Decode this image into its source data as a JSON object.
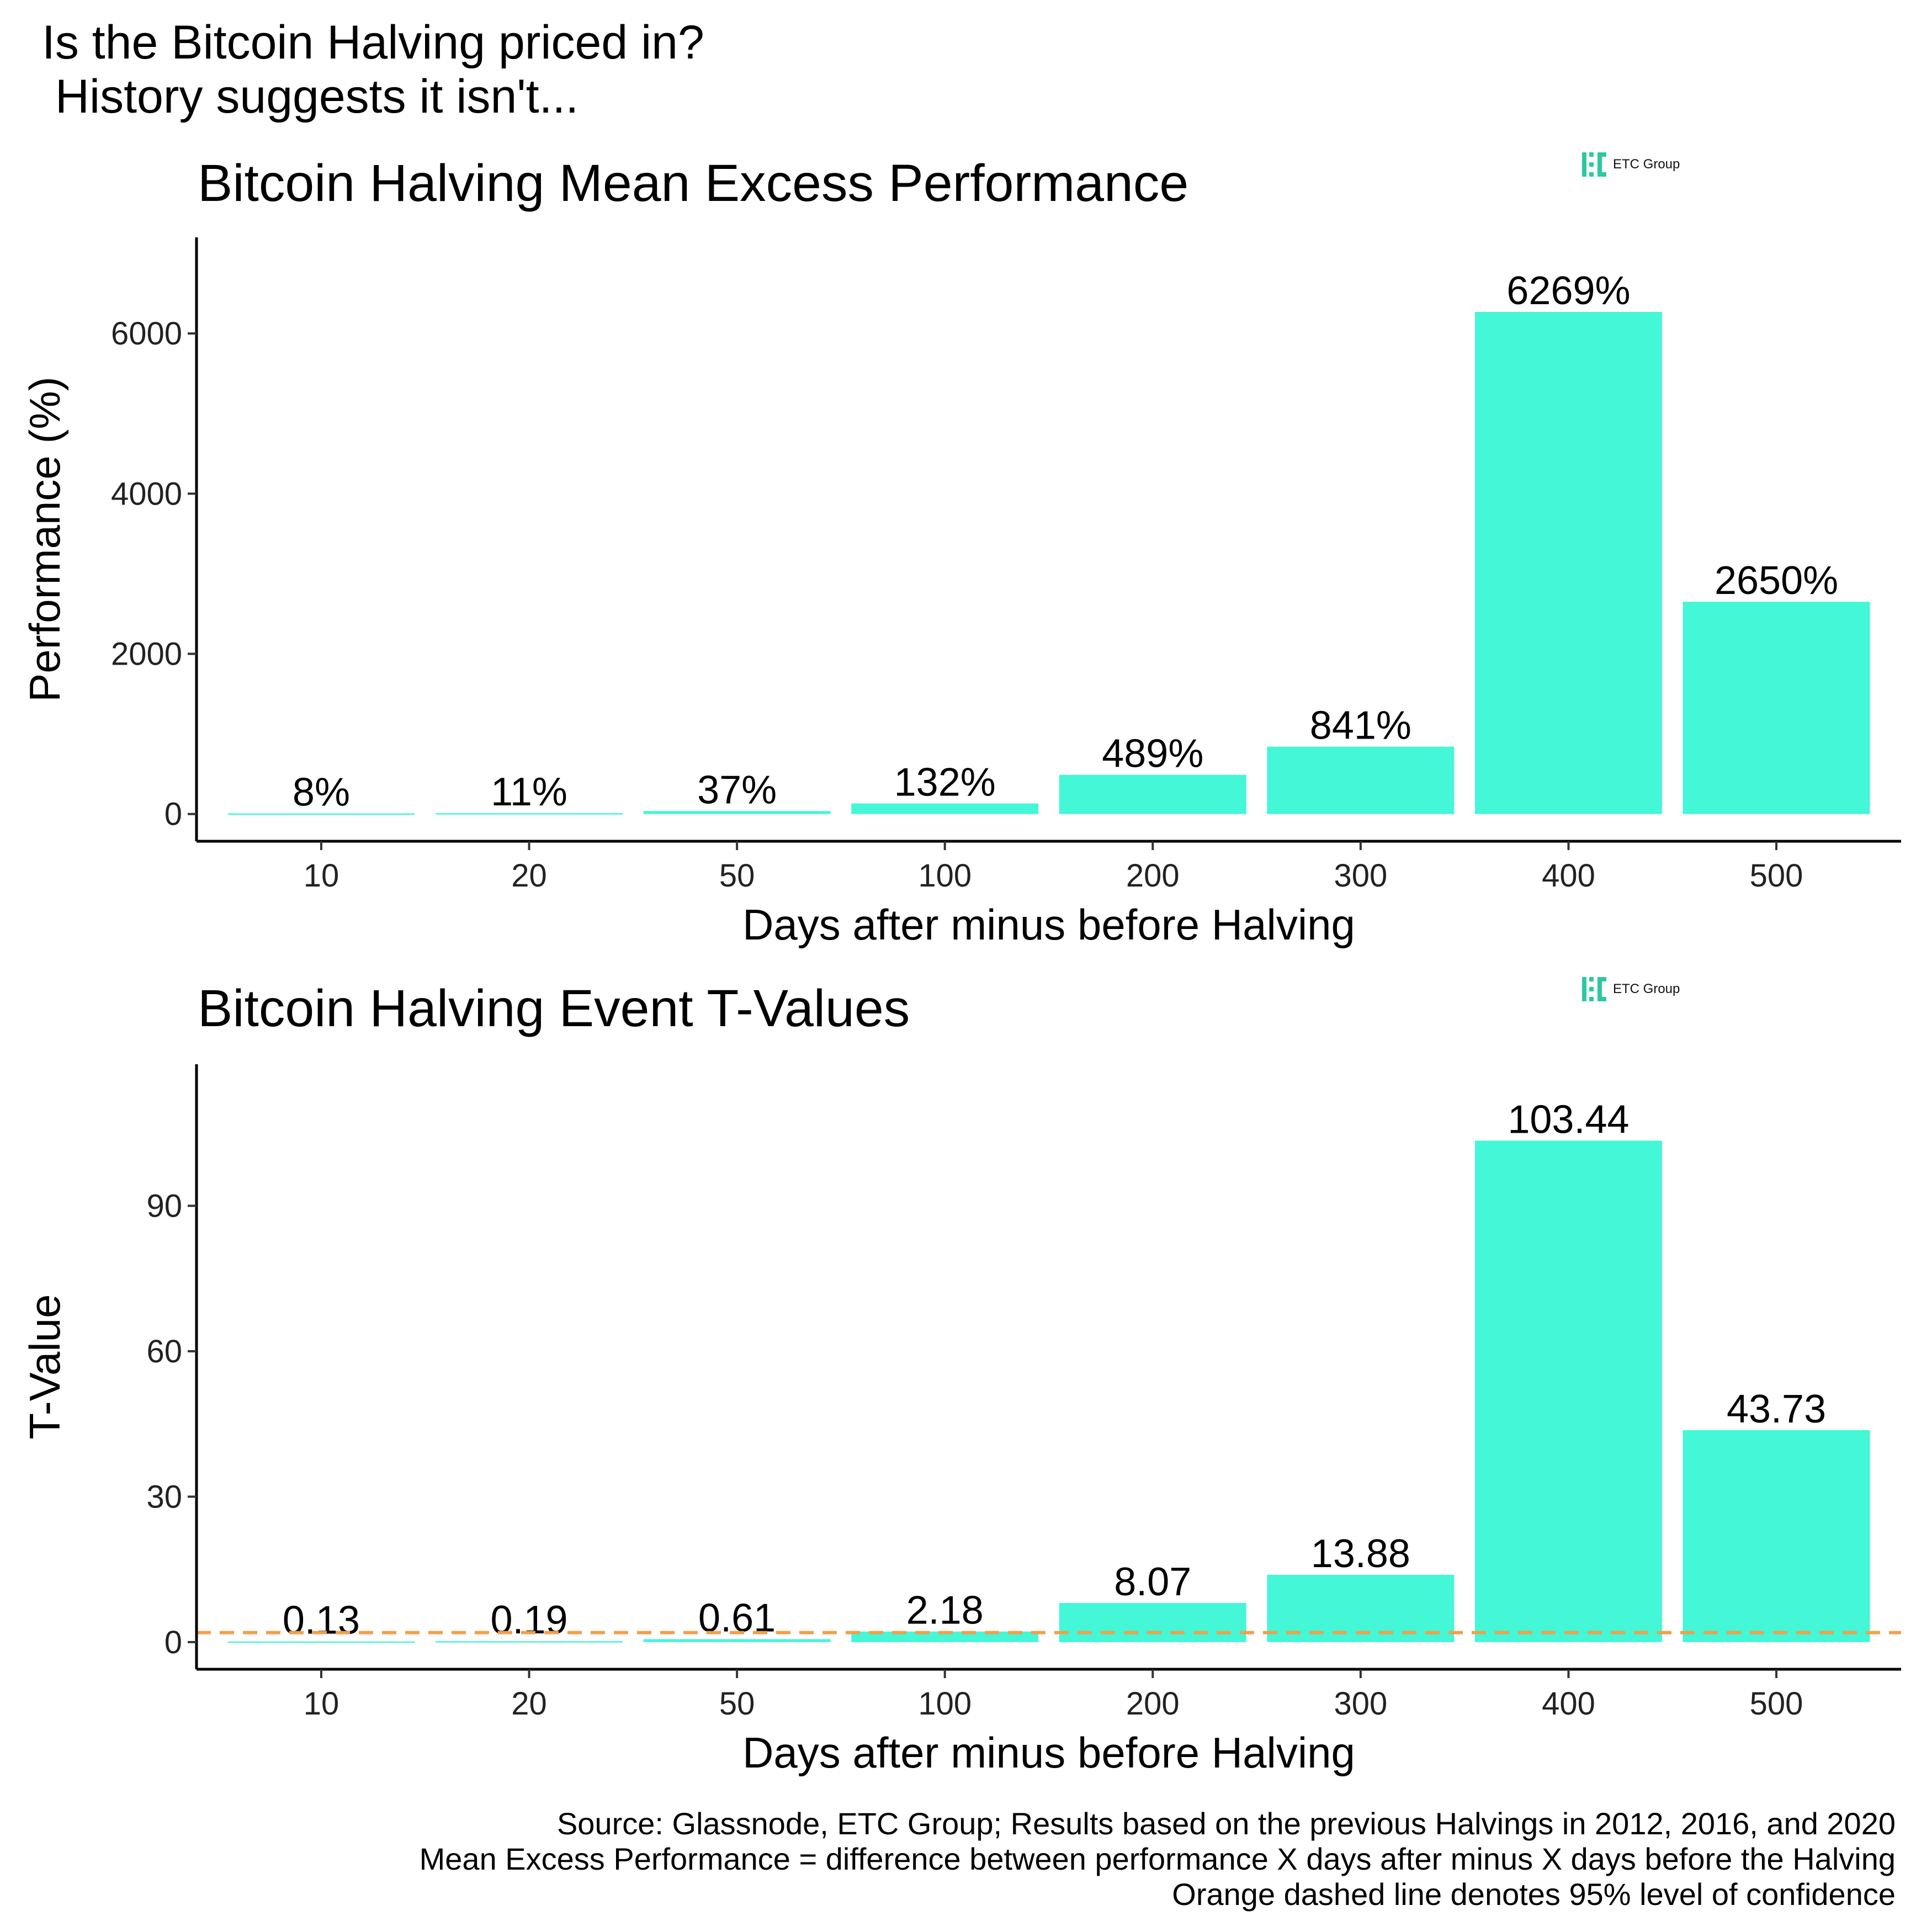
{
  "page": {
    "title_line1": "Is the Bitcoin Halving priced in?",
    "title_line2": " History suggests it isn't...",
    "logo_text": "ETC Group",
    "footer": [
      "Source: Glassnode, ETC Group; Results based on the previous Halvings in 2012, 2016, and 2020",
      "Mean Excess Performance = difference between performance X days after minus X days before the Halving",
      "Orange dashed line denotes 95% level of confidence"
    ]
  },
  "colors": {
    "bar": "#44F7D6",
    "threshold": "#F0A04B",
    "logo": "#2CC9A0",
    "axis": "#000000"
  },
  "chart_data": [
    {
      "type": "bar",
      "title": "Bitcoin Halving Mean Excess Performance",
      "xlabel": "Days after minus before Halving",
      "ylabel": "Performance (%)",
      "categories": [
        "10",
        "20",
        "50",
        "100",
        "200",
        "300",
        "400",
        "500"
      ],
      "values": [
        8,
        11,
        37,
        132,
        489,
        841,
        6269,
        2650
      ],
      "labels": [
        "8%",
        "11%",
        "37%",
        "132%",
        "489%",
        "841%",
        "6269%",
        "2650%"
      ],
      "yticks": [
        0,
        2000,
        4000,
        6000
      ],
      "ylim": [
        -340,
        7200
      ],
      "grid": false
    },
    {
      "type": "bar",
      "title": "Bitcoin Halving Event T-Values",
      "xlabel": "Days after minus before Halving",
      "ylabel": "T-Value",
      "categories": [
        "10",
        "20",
        "50",
        "100",
        "200",
        "300",
        "400",
        "500"
      ],
      "values": [
        0.13,
        0.19,
        0.61,
        2.18,
        8.07,
        13.88,
        103.44,
        43.73
      ],
      "labels": [
        "0.13",
        "0.19",
        "0.61",
        "2.18",
        "8.07",
        "13.88",
        "103.44",
        "43.73"
      ],
      "yticks": [
        0,
        30,
        60,
        90
      ],
      "ylim": [
        -5.6,
        119.2
      ],
      "threshold": 1.96,
      "grid": false
    }
  ]
}
